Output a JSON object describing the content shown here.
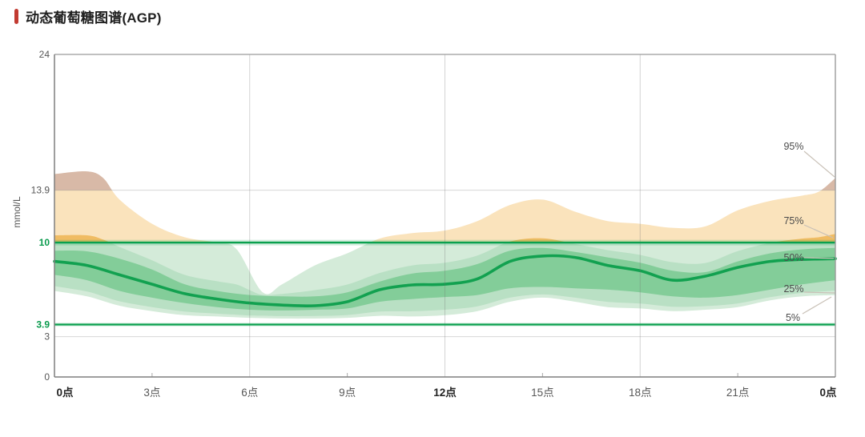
{
  "header": {
    "title": "动态葡萄糖图谱(AGP)"
  },
  "chart_data": {
    "type": "area",
    "title": "动态葡萄糖图谱(AGP)",
    "ylabel": "mmol/L",
    "ylim": [
      0,
      24
    ],
    "x_hours_range": [
      0,
      24
    ],
    "grid": "partial",
    "legend_position": "right-inline",
    "x_ticks": [
      {
        "hour": 0,
        "label": "0点",
        "bold": true
      },
      {
        "hour": 3,
        "label": "3点",
        "bold": false
      },
      {
        "hour": 6,
        "label": "6点",
        "bold": false
      },
      {
        "hour": 9,
        "label": "9点",
        "bold": false
      },
      {
        "hour": 12,
        "label": "12点",
        "bold": true
      },
      {
        "hour": 15,
        "label": "15点",
        "bold": false
      },
      {
        "hour": 18,
        "label": "18点",
        "bold": false
      },
      {
        "hour": 21,
        "label": "21点",
        "bold": false
      },
      {
        "hour": 24,
        "label": "0点",
        "bold": true
      }
    ],
    "y_ticks": [
      {
        "value": 24,
        "label": "24",
        "emphasis": false
      },
      {
        "value": 13.9,
        "label": "13.9",
        "emphasis": false
      },
      {
        "value": 10,
        "label": "10",
        "emphasis": true
      },
      {
        "value": 3.9,
        "label": "3.9",
        "emphasis": true
      },
      {
        "value": 3,
        "label": "3",
        "emphasis": false
      },
      {
        "value": 0,
        "label": "0",
        "emphasis": false
      }
    ],
    "h_gridline_values": [
      13.9,
      3
    ],
    "v_gridline_hours": [
      6,
      12,
      18
    ],
    "minor_tick_hours": [
      3,
      9,
      15,
      21
    ],
    "target_range": {
      "low": 3.9,
      "high": 10
    },
    "very_high_boundary": 13.9,
    "series": [
      {
        "name": "5%",
        "percentile": 5,
        "hours": [
          0,
          1,
          2,
          3,
          4,
          5,
          6,
          7,
          8,
          9,
          10,
          11,
          12,
          13,
          14,
          15,
          16,
          17,
          18,
          19,
          20,
          21,
          22,
          23,
          24
        ],
        "values": [
          6.4,
          6.0,
          5.3,
          4.9,
          4.6,
          4.5,
          4.4,
          4.35,
          4.35,
          4.4,
          4.55,
          4.5,
          4.6,
          4.9,
          5.6,
          5.9,
          5.6,
          5.2,
          5.1,
          4.9,
          5.0,
          5.2,
          5.7,
          6.0,
          6.1
        ]
      },
      {
        "name": "25%",
        "percentile": 25,
        "hours": [
          0,
          1,
          2,
          3,
          4,
          5,
          6,
          7,
          8,
          9,
          10,
          11,
          12,
          13,
          14,
          15,
          16,
          17,
          18,
          19,
          20,
          21,
          22,
          23,
          24
        ],
        "values": [
          7.6,
          7.2,
          6.4,
          5.9,
          5.5,
          5.2,
          5.0,
          4.95,
          5.0,
          5.1,
          5.6,
          5.8,
          5.95,
          6.1,
          6.6,
          6.7,
          6.6,
          6.5,
          6.3,
          6.0,
          5.9,
          6.1,
          6.5,
          6.9,
          7.2
        ]
      },
      {
        "name": "50%",
        "percentile": 50,
        "hours": [
          0,
          1,
          2,
          3,
          4,
          5,
          6,
          7,
          8,
          9,
          10,
          11,
          12,
          13,
          14,
          15,
          16,
          17,
          18,
          19,
          20,
          21,
          22,
          23,
          24
        ],
        "values": [
          8.6,
          8.3,
          7.6,
          6.9,
          6.2,
          5.8,
          5.5,
          5.35,
          5.3,
          5.6,
          6.5,
          6.85,
          6.9,
          7.3,
          8.6,
          9.0,
          8.9,
          8.3,
          7.9,
          7.2,
          7.5,
          8.15,
          8.6,
          8.75,
          8.8
        ]
      },
      {
        "name": "75%",
        "percentile": 75,
        "hours": [
          0,
          1,
          2,
          3,
          4,
          5,
          6,
          7,
          8,
          9,
          10,
          11,
          12,
          13,
          14,
          15,
          16,
          17,
          18,
          19,
          20,
          21,
          22,
          23,
          24
        ],
        "values": [
          9.4,
          9.35,
          8.8,
          8.0,
          6.9,
          6.4,
          6.1,
          6.0,
          6.0,
          6.3,
          7.1,
          7.7,
          7.9,
          8.4,
          9.4,
          9.6,
          9.3,
          8.9,
          8.5,
          7.9,
          7.8,
          8.6,
          9.2,
          9.5,
          9.6
        ]
      },
      {
        "name": "95%",
        "percentile": 95,
        "hours": [
          0,
          1,
          1.5,
          2,
          3,
          4,
          5,
          5.6,
          6.4,
          7,
          8,
          9,
          10,
          11,
          12,
          13,
          14,
          15,
          16,
          17,
          18,
          19,
          20,
          21,
          22,
          23,
          23.5,
          24
        ],
        "values": [
          15.1,
          15.3,
          14.8,
          13.2,
          11.4,
          10.4,
          10.0,
          9.5,
          6.3,
          6.9,
          8.3,
          9.2,
          10.3,
          10.7,
          10.9,
          11.6,
          12.8,
          13.2,
          12.3,
          11.6,
          11.4,
          11.1,
          11.2,
          12.4,
          13.1,
          13.5,
          13.8,
          14.8
        ]
      }
    ],
    "percentile_labels": [
      "95%",
      "75%",
      "50%",
      "25%",
      "5%"
    ],
    "colors": {
      "accent_red": "#c23b31",
      "threshold_green": "#0aa04e",
      "median_green": "#12a150",
      "band_inner_green": "#83cd99",
      "band_mid_green": "#b9e0c4",
      "band_outer_green": "#d4ebd9",
      "band_outer_orange": "#fae3bc",
      "band_mid_orange": "#f0bc63",
      "band_very_high_tan": "#d8b9a7",
      "axis_gray": "#8a8a8a",
      "tick_text_gray": "#565656",
      "bold_tick_text": "#232323",
      "leader_line": "#c9c1b7"
    }
  }
}
